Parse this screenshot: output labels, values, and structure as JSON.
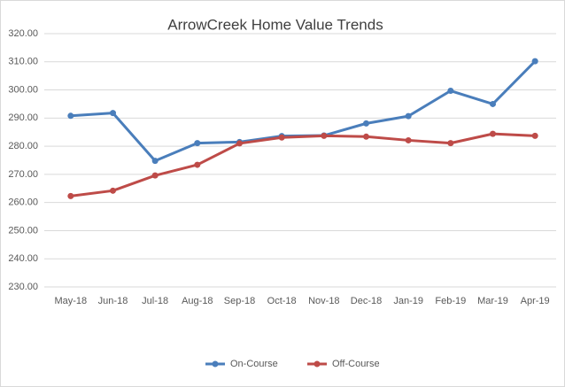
{
  "chart_data": {
    "type": "line",
    "title": "ArrowCreek Home Value Trends",
    "categories": [
      "May-18",
      "Jun-18",
      "Jul-18",
      "Aug-18",
      "Sep-18",
      "Oct-18",
      "Nov-18",
      "Dec-18",
      "Jan-19",
      "Feb-19",
      "Mar-19",
      "Apr-19"
    ],
    "series": [
      {
        "name": "On-Course",
        "color": "#4a7ebb",
        "values": [
          290.8,
          291.8,
          274.8,
          281.1,
          281.5,
          283.6,
          283.8,
          288.1,
          290.7,
          299.7,
          295.0,
          310.2
        ]
      },
      {
        "name": "Off-Course",
        "color": "#be4b48",
        "values": [
          262.3,
          264.2,
          269.6,
          273.4,
          281.0,
          283.1,
          283.7,
          283.4,
          282.1,
          281.1,
          284.4,
          283.7
        ]
      }
    ],
    "ylim": [
      230,
      320
    ],
    "yticks": [
      {
        "value": 230,
        "label": "230.00"
      },
      {
        "value": 240,
        "label": "240.00"
      },
      {
        "value": 250,
        "label": "250.00"
      },
      {
        "value": 260,
        "label": "260.00"
      },
      {
        "value": 270,
        "label": "270.00"
      },
      {
        "value": 280,
        "label": "280.00"
      },
      {
        "value": 290,
        "label": "290.00"
      },
      {
        "value": 300,
        "label": "300.00"
      },
      {
        "value": 310,
        "label": "310.00"
      },
      {
        "value": 320,
        "label": "320.00"
      }
    ],
    "grid": true,
    "legend": "bottom"
  }
}
